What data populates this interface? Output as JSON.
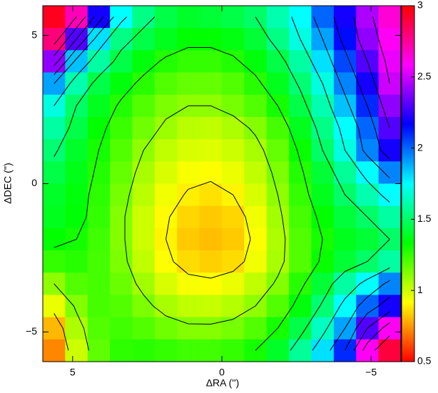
{
  "chart_data": {
    "type": "heatmap",
    "xlabel": "ΔRA ('')",
    "ylabel": "ΔDEC ('')",
    "xlim": [
      6,
      -6
    ],
    "ylim": [
      -6,
      6
    ],
    "xticks": [
      5,
      0,
      {
        "value": -5,
        "label": "−5"
      }
    ],
    "yticks": [
      {
        "value": -5,
        "label": "−5"
      },
      0,
      5
    ],
    "colormap": "hsv",
    "clim": [
      0.5,
      3
    ],
    "colorbar_ticks": [
      0.5,
      1,
      1.5,
      2,
      2.5,
      3
    ],
    "contour_levels": [
      0.9,
      1.1,
      1.3,
      1.5,
      1.7,
      1.9,
      2.1,
      2.3,
      2.5,
      2.7
    ],
    "contour_color": "#000000",
    "z": [
      [
        2.95,
        2.7,
        2.2,
        1.75,
        1.55,
        1.45,
        1.4,
        1.42,
        1.45,
        1.5,
        1.62,
        1.75,
        2.0,
        2.2,
        2.45,
        2.65
      ],
      [
        2.8,
        2.3,
        1.8,
        1.55,
        1.45,
        1.38,
        1.33,
        1.33,
        1.36,
        1.42,
        1.55,
        1.7,
        1.9,
        2.15,
        2.4,
        2.6
      ],
      [
        2.4,
        1.85,
        1.6,
        1.45,
        1.35,
        1.28,
        1.25,
        1.25,
        1.28,
        1.35,
        1.45,
        1.6,
        1.8,
        2.05,
        2.3,
        2.55
      ],
      [
        1.9,
        1.62,
        1.45,
        1.35,
        1.27,
        1.2,
        1.17,
        1.17,
        1.2,
        1.27,
        1.38,
        1.52,
        1.7,
        1.95,
        2.2,
        2.5
      ],
      [
        1.7,
        1.5,
        1.38,
        1.28,
        1.2,
        1.13,
        1.1,
        1.1,
        1.14,
        1.2,
        1.3,
        1.45,
        1.62,
        1.85,
        2.1,
        2.4
      ],
      [
        1.6,
        1.45,
        1.33,
        1.24,
        1.15,
        1.08,
        1.03,
        1.02,
        1.05,
        1.12,
        1.22,
        1.38,
        1.55,
        1.75,
        2.0,
        2.3
      ],
      [
        1.52,
        1.4,
        1.3,
        1.2,
        1.1,
        1.02,
        0.98,
        0.97,
        1.0,
        1.06,
        1.17,
        1.32,
        1.5,
        1.7,
        1.95,
        2.2
      ],
      [
        1.45,
        1.37,
        1.28,
        1.17,
        1.06,
        0.98,
        0.93,
        0.92,
        0.95,
        1.02,
        1.13,
        1.28,
        1.42,
        1.58,
        1.75,
        1.95
      ],
      [
        1.4,
        1.35,
        1.26,
        1.14,
        1.03,
        0.94,
        0.89,
        0.87,
        0.9,
        0.98,
        1.1,
        1.25,
        1.38,
        1.5,
        1.62,
        1.75
      ],
      [
        1.38,
        1.34,
        1.25,
        1.12,
        1.0,
        0.91,
        0.85,
        0.83,
        0.85,
        0.94,
        1.07,
        1.22,
        1.33,
        1.43,
        1.5,
        1.6
      ],
      [
        1.33,
        1.3,
        1.23,
        1.12,
        1.0,
        0.9,
        0.83,
        0.81,
        0.83,
        0.92,
        1.05,
        1.2,
        1.3,
        1.38,
        1.42,
        1.5
      ],
      [
        1.25,
        1.27,
        1.22,
        1.13,
        1.02,
        0.92,
        0.86,
        0.84,
        0.86,
        0.94,
        1.06,
        1.2,
        1.32,
        1.42,
        1.5,
        1.6
      ],
      [
        1.1,
        1.2,
        1.22,
        1.16,
        1.07,
        0.98,
        0.93,
        0.92,
        0.95,
        1.02,
        1.12,
        1.27,
        1.42,
        1.6,
        1.75,
        1.95
      ],
      [
        0.95,
        1.12,
        1.22,
        1.2,
        1.13,
        1.06,
        1.02,
        1.01,
        1.04,
        1.1,
        1.2,
        1.35,
        1.52,
        1.75,
        2.0,
        2.2
      ],
      [
        0.8,
        1.05,
        1.2,
        1.23,
        1.2,
        1.15,
        1.12,
        1.12,
        1.14,
        1.2,
        1.3,
        1.45,
        1.65,
        1.9,
        2.3,
        2.6
      ],
      [
        0.72,
        1.0,
        1.18,
        1.26,
        1.27,
        1.25,
        1.23,
        1.23,
        1.25,
        1.3,
        1.4,
        1.58,
        1.8,
        2.1,
        2.6,
        2.9
      ]
    ]
  }
}
